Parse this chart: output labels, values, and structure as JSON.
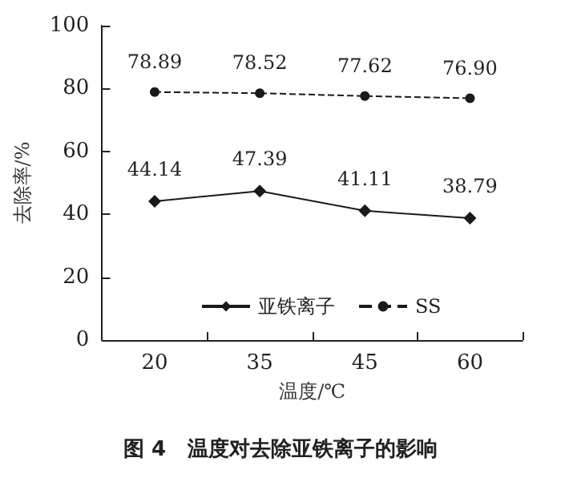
{
  "chart_data": {
    "type": "line",
    "title": "图 4   温度对去除亚铁离子的影响",
    "xlabel": "温度/℃",
    "ylabel": "去除率/%",
    "categories": [
      "20",
      "35",
      "45",
      "60"
    ],
    "series": [
      {
        "name": "亚铁离子",
        "color": "#1a1a1a",
        "values": [
          44.14,
          47.39,
          41.11,
          38.79
        ],
        "marker": "diamond",
        "line_style": "solid"
      },
      {
        "name": "SS",
        "color": "#1a1a1a",
        "values": [
          78.89,
          78.52,
          77.62,
          76.9
        ],
        "value_labels": [
          "78.89",
          "78.52",
          "77.62",
          "76.90"
        ],
        "marker": "circle",
        "line_style": "dashed"
      }
    ],
    "data_labels": true,
    "ylim": [
      0,
      100
    ],
    "yticks": [
      0,
      20,
      40,
      60,
      80,
      100
    ],
    "grid": false,
    "legend": "bottom"
  }
}
